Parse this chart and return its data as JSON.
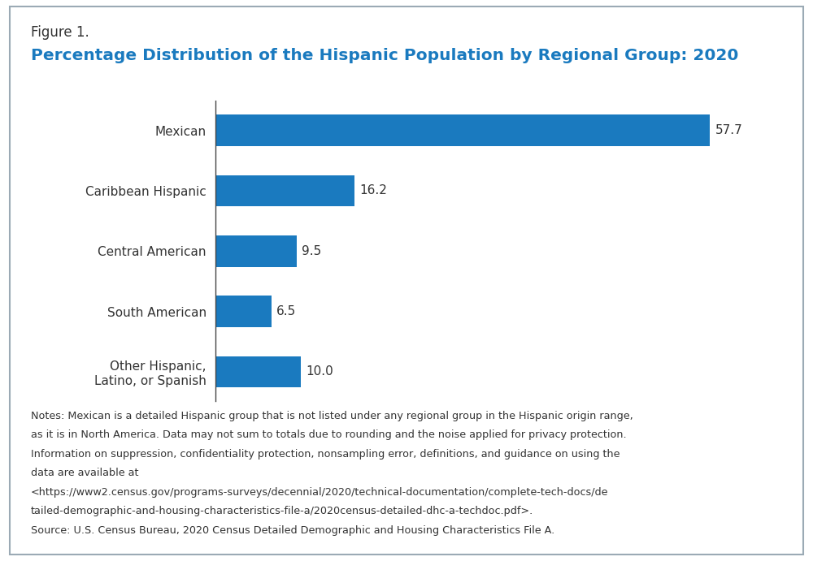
{
  "figure_label": "Figure 1.",
  "title": "Percentage Distribution of the Hispanic Population by Regional Group: 2020",
  "categories": [
    "Mexican",
    "Caribbean Hispanic",
    "Central American",
    "South American",
    "Other Hispanic,\nLatino, or Spanish"
  ],
  "values": [
    57.7,
    16.2,
    9.5,
    6.5,
    10.0
  ],
  "bar_color": "#1a7abf",
  "value_labels": [
    "57.7",
    "16.2",
    "9.5",
    "6.5",
    "10.0"
  ],
  "xlim": [
    0,
    65
  ],
  "bar_height": 0.52,
  "notes_line1": "Notes: Mexican is a detailed Hispanic group that is not listed under any regional group in the Hispanic origin range,",
  "notes_line2": "as it is in North America. Data may not sum to totals due to rounding and the noise applied for privacy protection.",
  "notes_line3": "Information on suppression, confidentiality protection, nonsampling error, definitions, and guidance on using the",
  "notes_line4": "data are available at",
  "notes_line5": "<https://www2.census.gov/programs-surveys/decennial/2020/technical-documentation/complete-tech-docs/de",
  "notes_line6": "tailed-demographic-and-housing-characteristics-file-a/2020census-detailed-dhc-a-techdoc.pdf>.",
  "notes_line7": "Source: U.S. Census Bureau, 2020 Census Detailed Demographic and Housing Characteristics File A.",
  "background_color": "#ffffff",
  "border_color": "#9baab5",
  "title_color": "#1a7abf",
  "figure_label_color": "#333333",
  "text_color": "#333333",
  "notes_color": "#333333",
  "fig_width": 10.0,
  "fig_height": 6.91
}
